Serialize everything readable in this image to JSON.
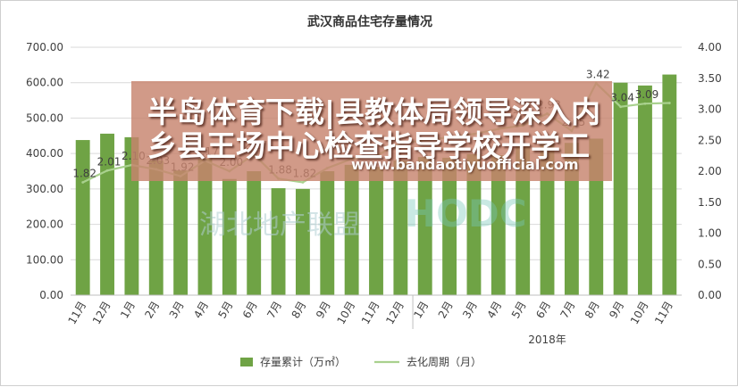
{
  "chart_data": {
    "type": "bar",
    "title": "武汉商品住宅存量情况",
    "categories": [
      "11月",
      "12月",
      "1月",
      "2月",
      "3月",
      "4月",
      "5月",
      "6月",
      "7月",
      "8月",
      "9月",
      "10月",
      "11月",
      "12月",
      "1月",
      "2月",
      "3月",
      "4月",
      "5月",
      "6月",
      "7月",
      "8月",
      "9月",
      "10月",
      "11月"
    ],
    "year_group_label": "2018年",
    "series": [
      {
        "name": "存量累计（万㎡）",
        "axis": "left",
        "color": "#6fa345",
        "values": [
          438,
          456,
          446,
          380,
          352,
          385,
          328,
          350,
          302,
          300,
          350,
          368,
          362,
          380,
          390,
          388,
          398,
          395,
          425,
          432,
          430,
          442,
          600,
          592,
          623
        ]
      },
      {
        "name": "去化周期（月）",
        "axis": "right",
        "color": "#a9d18e",
        "values": [
          1.82,
          2.01,
          2.1,
          2.03,
          1.92,
          2.17,
          2.0,
          2.27,
          1.88,
          1.82,
          2.05,
          2.2,
          2.25,
          2.45,
          2.5,
          2.55,
          2.6,
          2.68,
          2.74,
          2.93,
          2.65,
          3.42,
          3.04,
          3.09,
          3.1
        ],
        "labels": [
          "1.82",
          "2.01",
          "2.10",
          "2.03",
          "1.92",
          "2.17",
          "2.00",
          "2.27",
          "1.88",
          "1.82",
          "",
          "",
          "",
          "",
          "",
          "",
          "",
          "",
          "2.74",
          "2.93",
          "2.65",
          "3.42",
          "3.04",
          "3.09",
          ""
        ]
      }
    ],
    "y_left": {
      "min": 0,
      "max": 700,
      "step": 100,
      "ticks": [
        "0.00",
        "100.00",
        "200.00",
        "300.00",
        "400.00",
        "500.00",
        "600.00",
        "700.00"
      ]
    },
    "y_right": {
      "min": 0,
      "max": 4,
      "step": 0.5,
      "ticks": [
        "0.00",
        "0.50",
        "1.00",
        "1.50",
        "2.00",
        "2.50",
        "3.00",
        "3.50",
        "4.00"
      ]
    },
    "grid": true,
    "legend_position": "bottom"
  },
  "overlay": {
    "banner_line1": "半岛体育下载|县教体局领导深入内",
    "banner_line2": "乡县王场中心检查指导学校开学工",
    "banner_url": "www.bandaotiyuofficial.com",
    "watermark_text": "湖北地产联盟",
    "watermark_logo": "HODC",
    "banner_color": "#c7846e"
  }
}
